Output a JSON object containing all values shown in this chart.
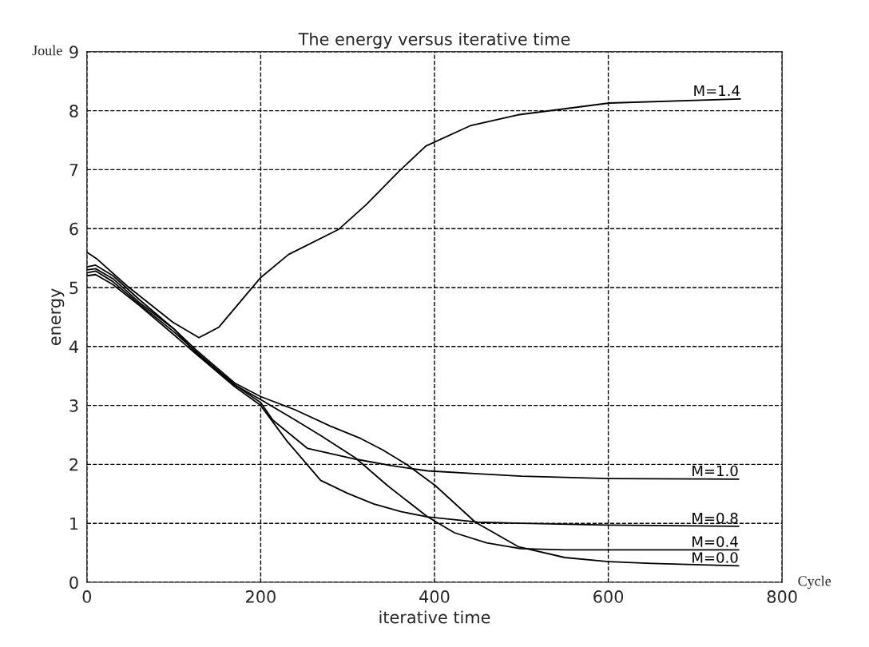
{
  "chart_data": {
    "type": "line",
    "title": "The energy versus iterative time",
    "xlabel": "iterative time",
    "ylabel": "energy",
    "annotations": [
      "Joule",
      "Cycle"
    ],
    "xlim": [
      0,
      800
    ],
    "xticks": [
      0,
      200,
      400,
      600,
      800
    ],
    "ylim": [
      0,
      9
    ],
    "yticks": [
      0,
      1,
      2,
      3,
      4,
      5,
      6,
      7,
      8,
      9
    ],
    "grid": true,
    "legend": false,
    "line_style": "solid",
    "series": [
      {
        "name": "M=1.4",
        "color": "#000000",
        "x": [
          0,
          12,
          46,
          99,
          129,
          152,
          200,
          232,
          290,
          321,
          359,
          390,
          442,
          496,
          601,
          752
        ],
        "values": [
          5.6,
          5.48,
          5.03,
          4.41,
          4.15,
          4.33,
          5.17,
          5.56,
          5.99,
          6.4,
          6.97,
          7.4,
          7.75,
          7.93,
          8.13,
          8.2
        ]
      },
      {
        "name": "M=1.0",
        "color": "#000000",
        "x": [
          0,
          10,
          30,
          60,
          100,
          125,
          170,
          200,
          214,
          254,
          309,
          350,
          392,
          450,
          500,
          600,
          750
        ],
        "values": [
          5.35,
          5.38,
          5.2,
          4.8,
          4.3,
          3.9,
          3.35,
          3.05,
          2.75,
          2.27,
          2.09,
          1.98,
          1.89,
          1.84,
          1.8,
          1.76,
          1.75
        ]
      },
      {
        "name": "M=0.8",
        "color": "#000000",
        "x": [
          0,
          10,
          30,
          60,
          100,
          125,
          170,
          200,
          230,
          269,
          300,
          330,
          361,
          392,
          450,
          500,
          600,
          750
        ],
        "values": [
          5.2,
          5.22,
          5.05,
          4.7,
          4.2,
          3.88,
          3.32,
          3.0,
          2.4,
          1.73,
          1.51,
          1.33,
          1.2,
          1.11,
          1.02,
          1.0,
          0.97,
          0.95
        ]
      },
      {
        "name": "M=0.4",
        "color": "#000000",
        "x": [
          0,
          10,
          30,
          60,
          100,
          125,
          170,
          200,
          240,
          269,
          309,
          346,
          392,
          423,
          460,
          499,
          550,
          650,
          750
        ],
        "values": [
          5.25,
          5.28,
          5.1,
          4.72,
          4.25,
          3.92,
          3.35,
          3.1,
          2.75,
          2.49,
          2.11,
          1.64,
          1.11,
          0.84,
          0.67,
          0.57,
          0.55,
          0.55,
          0.55
        ]
      },
      {
        "name": "M=0.0",
        "color": "#000000",
        "x": [
          0,
          10,
          30,
          60,
          100,
          125,
          170,
          200,
          239,
          280,
          315,
          340,
          368,
          401,
          447,
          497,
          550,
          600,
          650,
          700,
          750
        ],
        "values": [
          5.3,
          5.32,
          5.15,
          4.75,
          4.3,
          3.95,
          3.38,
          3.15,
          2.93,
          2.65,
          2.44,
          2.25,
          2.0,
          1.64,
          1.02,
          0.6,
          0.42,
          0.35,
          0.32,
          0.3,
          0.28
        ]
      }
    ]
  }
}
